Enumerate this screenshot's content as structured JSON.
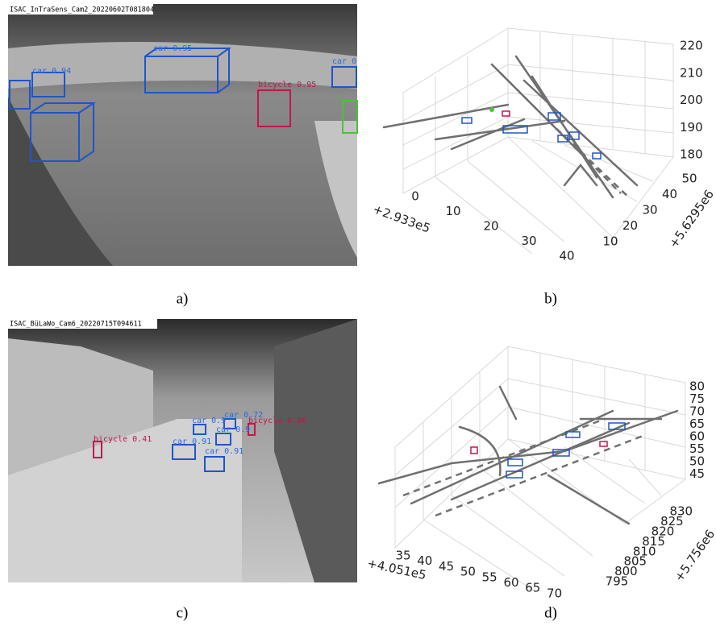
{
  "panels": [
    {
      "caption": "a)",
      "image_label": "ISAC_InTraSens_Cam2_20220602T081804",
      "detections": [
        "car 0.95",
        "car 0.94",
        "bicycle 0.95",
        "car 0"
      ]
    },
    {
      "caption": "b)",
      "z_ticks": [
        220,
        210,
        200,
        190,
        180
      ],
      "x_ticks": [
        0,
        10,
        20,
        30,
        40
      ],
      "x_offset": "+2.933e5",
      "y_ticks": [
        10,
        20,
        30,
        40,
        50
      ],
      "y_offset": "+5.6295e6"
    },
    {
      "caption": "c)",
      "image_label": "ISAC_BüLaWo_Cam6_20220715T094611",
      "detections": [
        "bicycle 0.41",
        "car 0.91",
        "car 0.91",
        "car 0.9",
        "car 0.72",
        "car 0.9",
        "bicycle 0.86"
      ]
    },
    {
      "caption": "d)",
      "z_ticks": [
        80,
        75,
        70,
        65,
        60,
        55,
        50,
        45
      ],
      "x_ticks": [
        35,
        40,
        45,
        50,
        55,
        60,
        65,
        70
      ],
      "x_offset": "+4.051e5",
      "y_ticks": [
        795,
        800,
        805,
        810,
        815,
        820,
        825,
        830
      ],
      "y_offset": "+5.756e6"
    }
  ]
}
